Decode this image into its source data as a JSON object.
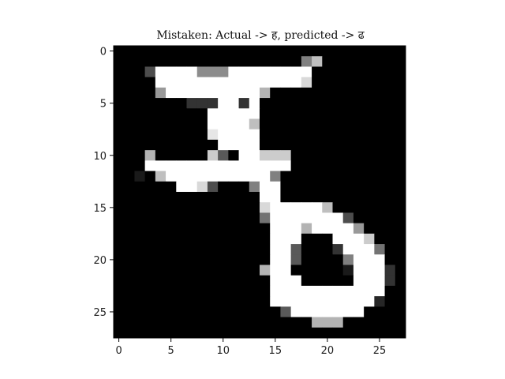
{
  "chart_data": {
    "type": "heatmap",
    "title": "Mistaken: Actual -> ह, predicted -> ढ",
    "xlabel": "",
    "ylabel": "",
    "x_ticks": [
      0,
      5,
      10,
      15,
      20,
      25
    ],
    "y_ticks": [
      0,
      5,
      10,
      15,
      20,
      25
    ],
    "xlim": [
      -0.5,
      27.5
    ],
    "ylim": [
      27.5,
      -0.5
    ],
    "colormap": "gray",
    "grid": false,
    "rows": 28,
    "cols": 28,
    "values": [
      [
        0,
        0,
        0,
        0,
        0,
        0,
        0,
        0,
        0,
        0,
        0,
        0,
        0,
        0,
        0,
        0,
        0,
        0,
        0,
        0,
        0,
        0,
        0,
        0,
        0,
        0,
        0,
        0
      ],
      [
        0,
        0,
        0,
        0,
        0,
        0,
        0,
        0,
        0,
        0,
        0,
        0,
        0,
        0,
        0,
        0,
        0,
        0,
        0.5,
        0.75,
        0,
        0,
        0,
        0,
        0,
        0,
        0,
        0
      ],
      [
        0,
        0,
        0,
        0.3,
        1,
        1,
        1,
        1,
        0.55,
        0.55,
        0.55,
        1,
        1,
        1,
        1,
        1,
        1,
        1,
        1,
        0,
        0,
        0,
        0,
        0,
        0,
        0,
        0,
        0
      ],
      [
        0,
        0,
        0,
        0,
        1,
        1,
        1,
        1,
        1,
        1,
        1,
        1,
        1,
        1,
        1,
        1,
        1,
        1,
        0.85,
        0,
        0,
        0,
        0,
        0,
        0,
        0,
        0,
        0
      ],
      [
        0,
        0,
        0,
        0,
        0.6,
        1,
        1,
        1,
        1,
        1,
        1,
        1,
        1,
        1,
        0.7,
        0,
        0,
        0,
        0,
        0,
        0,
        0,
        0,
        0,
        0,
        0,
        0,
        0
      ],
      [
        0,
        0,
        0,
        0,
        0,
        0,
        0,
        0.2,
        0.2,
        0.2,
        1,
        1,
        0.2,
        1,
        0,
        0,
        0,
        0,
        0,
        0,
        0,
        0,
        0,
        0,
        0,
        0,
        0,
        0
      ],
      [
        0,
        0,
        0,
        0,
        0,
        0,
        0,
        0,
        0,
        1,
        1,
        1,
        1,
        1,
        0,
        0,
        0,
        0,
        0,
        0,
        0,
        0,
        0,
        0,
        0,
        0,
        0,
        0
      ],
      [
        0,
        0,
        0,
        0,
        0,
        0,
        0,
        0,
        0,
        1,
        1,
        1,
        1,
        0.75,
        0,
        0,
        0,
        0,
        0,
        0,
        0,
        0,
        0,
        0,
        0,
        0,
        0,
        0
      ],
      [
        0,
        0,
        0,
        0,
        0,
        0,
        0,
        0,
        0,
        0.9,
        1,
        1,
        1,
        1,
        0,
        0,
        0,
        0,
        0,
        0,
        0,
        0,
        0,
        0,
        0,
        0,
        0,
        0
      ],
      [
        0,
        0,
        0,
        0,
        0,
        0,
        0,
        0,
        0,
        0,
        1,
        1,
        1,
        1,
        0,
        0,
        0,
        0,
        0,
        0,
        0,
        0,
        0,
        0,
        0,
        0,
        0,
        0
      ],
      [
        0,
        0,
        0,
        0.7,
        0,
        0,
        0,
        0,
        0,
        0.8,
        0.35,
        0,
        1,
        1,
        0.8,
        0.8,
        0.8,
        0,
        0,
        0,
        0,
        0,
        0,
        0,
        0,
        0,
        0,
        0
      ],
      [
        0,
        0,
        0,
        1,
        1,
        1,
        1,
        1,
        1,
        1,
        1,
        1,
        1,
        1,
        1,
        1,
        1,
        0,
        0,
        0,
        0,
        0,
        0,
        0,
        0,
        0,
        0,
        0
      ],
      [
        0,
        0,
        0.1,
        0,
        0.75,
        1,
        1,
        1,
        1,
        1,
        1,
        1,
        1,
        1,
        1,
        0.5,
        0,
        0,
        0,
        0,
        0,
        0,
        0,
        0,
        0,
        0,
        0,
        0
      ],
      [
        0,
        0,
        0,
        0,
        0,
        0,
        1,
        1,
        0.85,
        0.3,
        0,
        0,
        0,
        0.5,
        1,
        1,
        0,
        0,
        0,
        0,
        0,
        0,
        0,
        0,
        0,
        0,
        0,
        0
      ],
      [
        0,
        0,
        0,
        0,
        0,
        0,
        0,
        0,
        0,
        0,
        0,
        0,
        0,
        0,
        1,
        1,
        0,
        0,
        0,
        0,
        0,
        0,
        0,
        0,
        0,
        0,
        0,
        0
      ],
      [
        0,
        0,
        0,
        0,
        0,
        0,
        0,
        0,
        0,
        0,
        0,
        0,
        0,
        0,
        0.85,
        1,
        1,
        1,
        1,
        1,
        0.75,
        0,
        0,
        0,
        0,
        0,
        0,
        0
      ],
      [
        0,
        0,
        0,
        0,
        0,
        0,
        0,
        0,
        0,
        0,
        0,
        0,
        0,
        0,
        0.45,
        1,
        1,
        1,
        1,
        1,
        1,
        1,
        0.3,
        0,
        0,
        0,
        0,
        0
      ],
      [
        0,
        0,
        0,
        0,
        0,
        0,
        0,
        0,
        0,
        0,
        0,
        0,
        0,
        0,
        0,
        1,
        1,
        1,
        0.7,
        1,
        1,
        1,
        1,
        0.6,
        0,
        0,
        0,
        0
      ],
      [
        0,
        0,
        0,
        0,
        0,
        0,
        0,
        0,
        0,
        0,
        0,
        0,
        0,
        0,
        0,
        1,
        1,
        1,
        0,
        0,
        0,
        1,
        1,
        1,
        0.8,
        0,
        0,
        0
      ],
      [
        0,
        0,
        0,
        0,
        0,
        0,
        0,
        0,
        0,
        0,
        0,
        0,
        0,
        0,
        0,
        1,
        1,
        0.35,
        0,
        0,
        0,
        0.2,
        1,
        1,
        1,
        0.45,
        0,
        0
      ],
      [
        0,
        0,
        0,
        0,
        0,
        0,
        0,
        0,
        0,
        0,
        0,
        0,
        0,
        0,
        0,
        1,
        1,
        0.35,
        0,
        0,
        0,
        0,
        0.5,
        1,
        1,
        1,
        0,
        0
      ],
      [
        0,
        0,
        0,
        0,
        0,
        0,
        0,
        0,
        0,
        0,
        0,
        0,
        0,
        0,
        0.7,
        1,
        1,
        0,
        0,
        0,
        0,
        0,
        0.1,
        1,
        1,
        1,
        0.2,
        0
      ],
      [
        0,
        0,
        0,
        0,
        0,
        0,
        0,
        0,
        0,
        0,
        0,
        0,
        0,
        0,
        0,
        1,
        1,
        1,
        0,
        0,
        0,
        0,
        0,
        1,
        1,
        1,
        0.2,
        0
      ],
      [
        0,
        0,
        0,
        0,
        0,
        0,
        0,
        0,
        0,
        0,
        0,
        0,
        0,
        0,
        0,
        1,
        1,
        1,
        1,
        1,
        1,
        1,
        1,
        1,
        1,
        1,
        0,
        0
      ],
      [
        0,
        0,
        0,
        0,
        0,
        0,
        0,
        0,
        0,
        0,
        0,
        0,
        0,
        0,
        0,
        1,
        1,
        1,
        1,
        1,
        1,
        1,
        1,
        1,
        1,
        0.15,
        0,
        0
      ],
      [
        0,
        0,
        0,
        0,
        0,
        0,
        0,
        0,
        0,
        0,
        0,
        0,
        0,
        0,
        0,
        0,
        0.35,
        1,
        1,
        1,
        1,
        1,
        1,
        1,
        0,
        0,
        0,
        0
      ],
      [
        0,
        0,
        0,
        0,
        0,
        0,
        0,
        0,
        0,
        0,
        0,
        0,
        0,
        0,
        0,
        0,
        0,
        0,
        0,
        0.7,
        0.7,
        0.7,
        0,
        0,
        0,
        0,
        0,
        0
      ],
      [
        0,
        0,
        0,
        0,
        0,
        0,
        0,
        0,
        0,
        0,
        0,
        0,
        0,
        0,
        0,
        0,
        0,
        0,
        0,
        0,
        0,
        0,
        0,
        0,
        0,
        0,
        0,
        0
      ]
    ]
  }
}
